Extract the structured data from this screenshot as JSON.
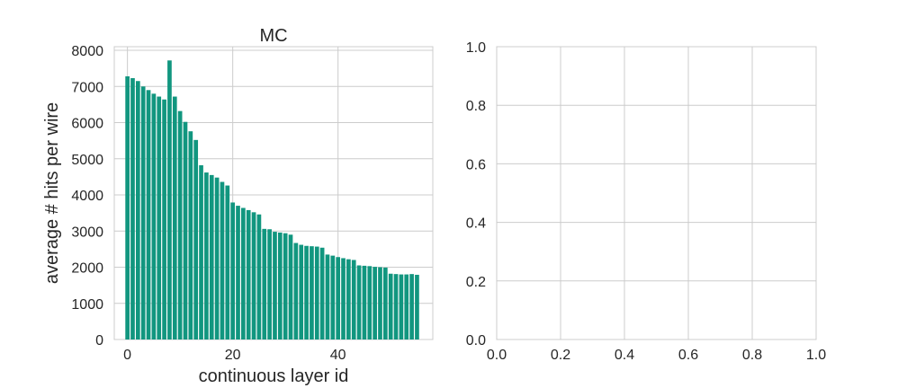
{
  "chart_data": [
    {
      "type": "bar",
      "title": "MC",
      "xlabel": "continuous layer id",
      "ylabel": "average # hits per wire",
      "x": [
        0,
        1,
        2,
        3,
        4,
        5,
        6,
        7,
        8,
        9,
        10,
        11,
        12,
        13,
        14,
        15,
        16,
        17,
        18,
        19,
        20,
        21,
        22,
        23,
        24,
        25,
        26,
        27,
        28,
        29,
        30,
        31,
        32,
        33,
        34,
        35,
        36,
        37,
        38,
        39,
        40,
        41,
        42,
        43,
        44,
        45,
        46,
        47,
        48,
        49,
        50,
        51,
        52,
        53,
        54,
        55
      ],
      "values": [
        7280,
        7230,
        7150,
        7000,
        6900,
        6800,
        6720,
        6640,
        7720,
        6720,
        6320,
        6020,
        5760,
        5520,
        4820,
        4620,
        4550,
        4480,
        4360,
        4260,
        3790,
        3700,
        3640,
        3580,
        3520,
        3460,
        3060,
        3050,
        2980,
        2960,
        2940,
        2900,
        2670,
        2620,
        2590,
        2580,
        2570,
        2540,
        2350,
        2320,
        2280,
        2250,
        2220,
        2200,
        2050,
        2040,
        2030,
        2010,
        2000,
        1990,
        1820,
        1810,
        1800,
        1800,
        1810,
        1790
      ],
      "xticks": [
        0,
        20,
        40
      ],
      "yticks": [
        0,
        1000,
        2000,
        3000,
        4000,
        5000,
        6000,
        7000,
        8000
      ],
      "xlim": [
        -2.5,
        58
      ],
      "ylim": [
        0,
        8100
      ],
      "grid": true,
      "color": "#11967f"
    },
    {
      "type": "empty",
      "xticks": [
        0.0,
        0.2,
        0.4,
        0.6,
        0.8,
        1.0
      ],
      "yticks": [
        0.0,
        0.2,
        0.4,
        0.6,
        0.8,
        1.0
      ],
      "xtick_labels": [
        "0.0",
        "0.2",
        "0.4",
        "0.6",
        "0.8",
        "1.0"
      ],
      "ytick_labels": [
        "0.0",
        "0.2",
        "0.4",
        "0.6",
        "0.8",
        "1.0"
      ],
      "xlim": [
        0,
        1
      ],
      "ylim": [
        0,
        1
      ],
      "grid": true
    }
  ]
}
